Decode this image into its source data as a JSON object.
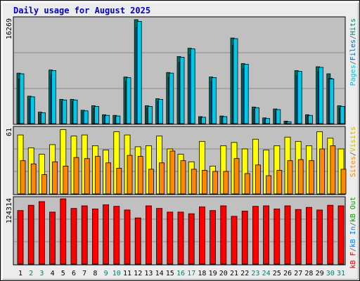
{
  "title": "Daily usage for August 2025",
  "days": [
    {
      "label": "1",
      "weekend": false
    },
    {
      "label": "2",
      "weekend": true
    },
    {
      "label": "3",
      "weekend": true
    },
    {
      "label": "4",
      "weekend": false
    },
    {
      "label": "5",
      "weekend": false
    },
    {
      "label": "6",
      "weekend": false
    },
    {
      "label": "7",
      "weekend": false
    },
    {
      "label": "8",
      "weekend": false
    },
    {
      "label": "9",
      "weekend": true
    },
    {
      "label": "10",
      "weekend": true
    },
    {
      "label": "11",
      "weekend": false
    },
    {
      "label": "12",
      "weekend": false
    },
    {
      "label": "13",
      "weekend": false
    },
    {
      "label": "14",
      "weekend": false
    },
    {
      "label": "15",
      "weekend": false
    },
    {
      "label": "16",
      "weekend": true
    },
    {
      "label": "17",
      "weekend": true
    },
    {
      "label": "18",
      "weekend": false
    },
    {
      "label": "19",
      "weekend": false
    },
    {
      "label": "20",
      "weekend": false
    },
    {
      "label": "21",
      "weekend": false
    },
    {
      "label": "22",
      "weekend": false
    },
    {
      "label": "23",
      "weekend": true
    },
    {
      "label": "24",
      "weekend": true
    },
    {
      "label": "25",
      "weekend": false
    },
    {
      "label": "26",
      "weekend": false
    },
    {
      "label": "27",
      "weekend": false
    },
    {
      "label": "28",
      "weekend": false
    },
    {
      "label": "29",
      "weekend": false
    },
    {
      "label": "30",
      "weekend": true
    },
    {
      "label": "31",
      "weekend": true
    }
  ],
  "panels": {
    "top": {
      "max_label": "16269",
      "legend": [
        {
          "text": "Pages",
          "color": "#00c0e0"
        },
        {
          "text": "/",
          "color": "#555555"
        },
        {
          "text": "Files",
          "color": "#0066bb"
        },
        {
          "text": "/",
          "color": "#555555"
        },
        {
          "text": "Hits",
          "color": "#00806e"
        }
      ]
    },
    "middle": {
      "max_label": "61",
      "legend": [
        {
          "text": "Sites",
          "color": "#ff8800"
        },
        {
          "text": "/",
          "color": "#555555"
        },
        {
          "text": "Visits",
          "color": "#d4b400"
        }
      ]
    },
    "bottom": {
      "max_label": "124314",
      "legend": [
        {
          "text": "kB F",
          "color": "#e00000"
        },
        {
          "text": "/",
          "color": "#555555"
        },
        {
          "text": "kB In",
          "color": "#0080ff"
        },
        {
          "text": "/",
          "color": "#555555"
        },
        {
          "text": "kB Out",
          "color": "#00a000"
        }
      ]
    }
  },
  "colors": {
    "hits": "#006e5e",
    "files": "#0066bb",
    "pages": "#00c8e8",
    "visits": "#ffff00",
    "sites": "#ff8800",
    "kbf": "#ff0000",
    "weekday_label": "#000000",
    "weekend_label": "#00806e",
    "title": "#0000cc"
  },
  "chart_data": [
    {
      "type": "bar",
      "title": "Daily usage for August 2025",
      "categories": [
        "1",
        "2",
        "3",
        "4",
        "5",
        "6",
        "7",
        "8",
        "9",
        "10",
        "11",
        "12",
        "13",
        "14",
        "15",
        "16",
        "17",
        "18",
        "19",
        "20",
        "21",
        "22",
        "23",
        "24",
        "25",
        "26",
        "27",
        "28",
        "29",
        "30",
        "31"
      ],
      "ylim": [
        0,
        16269
      ],
      "series": [
        {
          "name": "Hits",
          "values": [
            7900,
            4300,
            1800,
            8400,
            3800,
            3800,
            2100,
            2800,
            1400,
            1300,
            7300,
            16269,
            2800,
            3900,
            8000,
            10500,
            11800,
            1100,
            7300,
            1200,
            13400,
            9400,
            2600,
            900,
            2300,
            400,
            8300,
            1400,
            8900,
            7800,
            2800
          ]
        },
        {
          "name": "Files",
          "values": [
            7000,
            3800,
            1500,
            7600,
            3400,
            3400,
            1800,
            2400,
            1200,
            1000,
            6600,
            15000,
            2400,
            3500,
            7200,
            9600,
            10800,
            900,
            6600,
            1000,
            12200,
            8600,
            2300,
            700,
            2000,
            300,
            7500,
            1200,
            8100,
            7100,
            2400
          ]
        },
        {
          "name": "Pages",
          "values": [
            7800,
            4200,
            1700,
            8300,
            3700,
            3700,
            2000,
            2700,
            1300,
            1200,
            7200,
            16000,
            2700,
            3800,
            7900,
            10400,
            11700,
            1000,
            7200,
            1100,
            13300,
            9300,
            2500,
            800,
            2200,
            300,
            8200,
            1300,
            8800,
            7000,
            2700
          ]
        }
      ]
    },
    {
      "type": "bar",
      "categories": [
        "1",
        "2",
        "3",
        "4",
        "5",
        "6",
        "7",
        "8",
        "9",
        "10",
        "11",
        "12",
        "13",
        "14",
        "15",
        "16",
        "17",
        "18",
        "19",
        "20",
        "21",
        "22",
        "23",
        "24",
        "25",
        "26",
        "27",
        "28",
        "29",
        "30",
        "31"
      ],
      "ylim": [
        0,
        61
      ],
      "series": [
        {
          "name": "Visits",
          "values": [
            55,
            43,
            37,
            46,
            60,
            54,
            55,
            45,
            41,
            58,
            55,
            44,
            45,
            54,
            42,
            37,
            30,
            49,
            26,
            45,
            48,
            42,
            51,
            41,
            45,
            53,
            49,
            45,
            58,
            52,
            42
          ]
        },
        {
          "name": "Sites",
          "values": [
            31,
            28,
            18,
            30,
            26,
            34,
            33,
            35,
            29,
            24,
            36,
            35,
            23,
            29,
            40,
            31,
            23,
            22,
            21,
            21,
            33,
            19,
            27,
            17,
            22,
            31,
            32,
            31,
            42,
            45,
            23
          ]
        }
      ]
    },
    {
      "type": "bar",
      "categories": [
        "1",
        "2",
        "3",
        "4",
        "5",
        "6",
        "7",
        "8",
        "9",
        "10",
        "11",
        "12",
        "13",
        "14",
        "15",
        "16",
        "17",
        "18",
        "19",
        "20",
        "21",
        "22",
        "23",
        "24",
        "25",
        "26",
        "27",
        "28",
        "29",
        "30",
        "31"
      ],
      "ylim": [
        0,
        124314
      ],
      "series": [
        {
          "name": "kB F",
          "values": [
            102000,
            112000,
            119000,
            99000,
            124314,
            106000,
            111000,
            105000,
            113000,
            110000,
            103000,
            88000,
            111000,
            106000,
            99000,
            99000,
            96000,
            109000,
            102000,
            111000,
            91000,
            101000,
            110000,
            111000,
            105000,
            111000,
            104000,
            108000,
            103000,
            112000,
            111000
          ]
        }
      ]
    }
  ]
}
